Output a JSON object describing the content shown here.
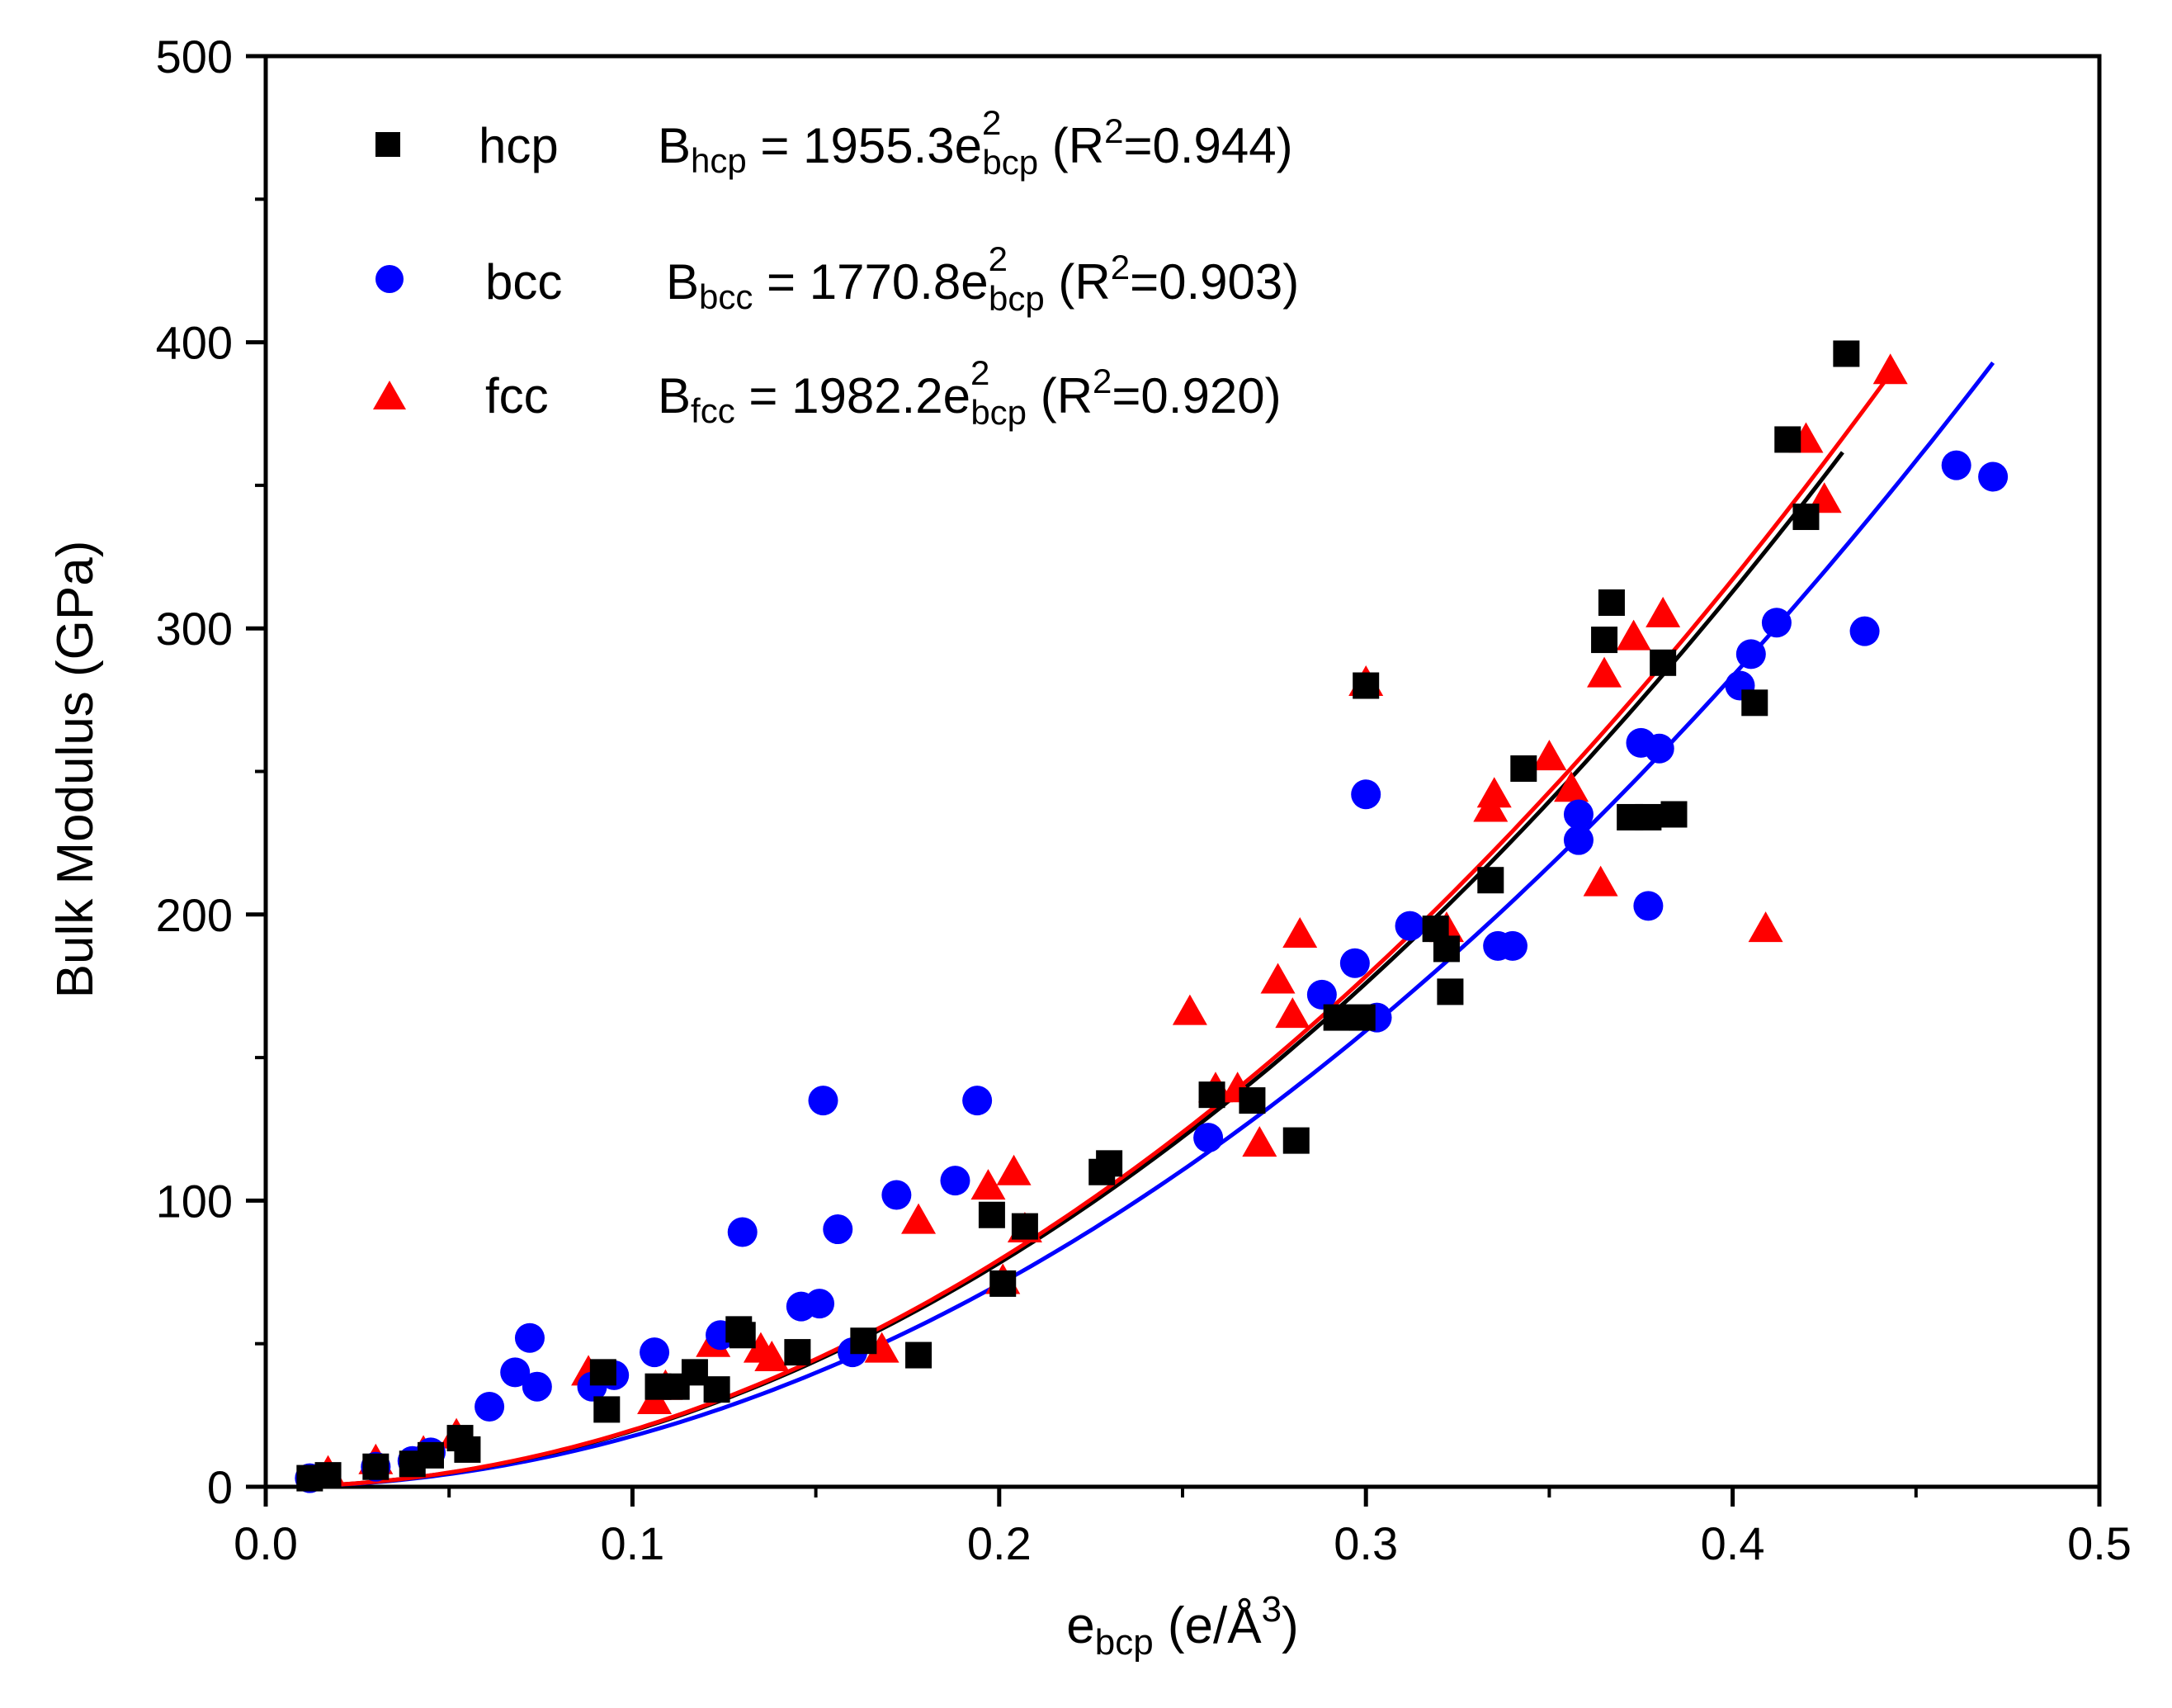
{
  "chart_data": {
    "type": "scatter",
    "xlabel": {
      "main": "e",
      "sub": "bcp",
      "unit_open": " (e/Å",
      "unit_sup": "3",
      "unit_close": ")"
    },
    "ylabel": "Bulk Modulus (GPa)",
    "xlim": [
      0.0,
      0.5
    ],
    "ylim": [
      0,
      500
    ],
    "x_ticks": [
      "0.0",
      "0.1",
      "0.2",
      "0.3",
      "0.4",
      "0.5"
    ],
    "y_ticks": [
      "0",
      "100",
      "200",
      "300",
      "400",
      "500"
    ],
    "grid": false,
    "legend_position": "top-left",
    "series": [
      {
        "name": "hcp",
        "marker": "square",
        "color": "#000000",
        "equation": {
          "b": "B",
          "b_sub": "hcp",
          "mid": " = 1955.3e",
          "e_sup": "2",
          "e_sub": "bcp",
          "r_open": " (R",
          "r_sup": "2",
          "r_close": "=0.944)"
        },
        "fit": {
          "coef": 1955.3,
          "x_end": 0.43,
          "color": "#000000"
        },
        "points": [
          [
            0.012,
            3
          ],
          [
            0.017,
            4
          ],
          [
            0.03,
            7
          ],
          [
            0.04,
            8
          ],
          [
            0.045,
            11
          ],
          [
            0.053,
            17
          ],
          [
            0.055,
            13
          ],
          [
            0.092,
            40
          ],
          [
            0.093,
            27
          ],
          [
            0.107,
            35
          ],
          [
            0.112,
            35
          ],
          [
            0.117,
            40
          ],
          [
            0.123,
            34
          ],
          [
            0.129,
            55
          ],
          [
            0.13,
            53
          ],
          [
            0.145,
            47
          ],
          [
            0.163,
            51
          ],
          [
            0.178,
            46
          ],
          [
            0.198,
            95
          ],
          [
            0.201,
            71
          ],
          [
            0.207,
            91
          ],
          [
            0.228,
            110
          ],
          [
            0.23,
            113
          ],
          [
            0.258,
            137
          ],
          [
            0.269,
            135
          ],
          [
            0.281,
            121
          ],
          [
            0.292,
            164
          ],
          [
            0.299,
            164
          ],
          [
            0.3,
            280
          ],
          [
            0.319,
            195
          ],
          [
            0.322,
            188
          ],
          [
            0.323,
            173
          ],
          [
            0.334,
            212
          ],
          [
            0.343,
            251
          ],
          [
            0.365,
            296
          ],
          [
            0.367,
            309
          ],
          [
            0.372,
            234
          ],
          [
            0.377,
            234
          ],
          [
            0.381,
            288
          ],
          [
            0.384,
            235
          ],
          [
            0.406,
            274
          ],
          [
            0.415,
            366
          ],
          [
            0.42,
            339
          ],
          [
            0.431,
            396
          ]
        ]
      },
      {
        "name": "bcc",
        "marker": "circle",
        "color": "#0000ff",
        "equation": {
          "b": "B",
          "b_sub": "bcc",
          "mid": " = 1770.8e",
          "e_sup": "2",
          "e_sub": "bcp",
          "r_open": " (R",
          "r_sup": "2",
          "r_close": "=0.903)"
        },
        "fit": {
          "coef": 1770.8,
          "x_end": 0.471,
          "color": "#0000ff"
        },
        "points": [
          [
            0.012,
            3
          ],
          [
            0.03,
            7
          ],
          [
            0.04,
            9
          ],
          [
            0.045,
            12
          ],
          [
            0.061,
            28
          ],
          [
            0.068,
            40
          ],
          [
            0.072,
            52
          ],
          [
            0.074,
            35
          ],
          [
            0.089,
            35
          ],
          [
            0.095,
            39
          ],
          [
            0.106,
            47
          ],
          [
            0.124,
            53
          ],
          [
            0.13,
            89
          ],
          [
            0.146,
            63
          ],
          [
            0.151,
            64
          ],
          [
            0.152,
            135
          ],
          [
            0.156,
            90
          ],
          [
            0.16,
            47
          ],
          [
            0.172,
            102
          ],
          [
            0.188,
            107
          ],
          [
            0.194,
            135
          ],
          [
            0.257,
            122
          ],
          [
            0.288,
            172
          ],
          [
            0.297,
            183
          ],
          [
            0.3,
            242
          ],
          [
            0.303,
            164
          ],
          [
            0.312,
            196
          ],
          [
            0.336,
            189
          ],
          [
            0.34,
            189
          ],
          [
            0.358,
            226
          ],
          [
            0.358,
            235
          ],
          [
            0.375,
            260
          ],
          [
            0.377,
            203
          ],
          [
            0.38,
            258
          ],
          [
            0.402,
            280
          ],
          [
            0.405,
            291
          ],
          [
            0.412,
            302
          ],
          [
            0.436,
            299
          ],
          [
            0.461,
            357
          ],
          [
            0.471,
            353
          ]
        ]
      },
      {
        "name": "fcc",
        "marker": "triangle",
        "color": "#ff0000",
        "equation": {
          "b": "B",
          "b_sub": "fcc",
          "mid": " = 1982.2e",
          "e_sup": "2",
          "e_sub": "bcp",
          "r_open": " (R",
          "r_sup": "2",
          "r_close": "=0.920)"
        },
        "fit": {
          "coef": 1982.2,
          "x_end": 0.443,
          "color": "#ff0000"
        },
        "points": [
          [
            0.017,
            5
          ],
          [
            0.03,
            9
          ],
          [
            0.043,
            12
          ],
          [
            0.052,
            18
          ],
          [
            0.088,
            40
          ],
          [
            0.106,
            30
          ],
          [
            0.109,
            35
          ],
          [
            0.122,
            50
          ],
          [
            0.135,
            48
          ],
          [
            0.138,
            45
          ],
          [
            0.168,
            48
          ],
          [
            0.178,
            93
          ],
          [
            0.197,
            105
          ],
          [
            0.201,
            72
          ],
          [
            0.204,
            110
          ],
          [
            0.207,
            90
          ],
          [
            0.252,
            166
          ],
          [
            0.259,
            139
          ],
          [
            0.265,
            139
          ],
          [
            0.271,
            120
          ],
          [
            0.276,
            177
          ],
          [
            0.28,
            165
          ],
          [
            0.282,
            193
          ],
          [
            0.3,
            281
          ],
          [
            0.322,
            195
          ],
          [
            0.334,
            237
          ],
          [
            0.335,
            242
          ],
          [
            0.35,
            255
          ],
          [
            0.356,
            244
          ],
          [
            0.364,
            211
          ],
          [
            0.365,
            284
          ],
          [
            0.373,
            297
          ],
          [
            0.381,
            305
          ],
          [
            0.409,
            195
          ],
          [
            0.42,
            366
          ],
          [
            0.425,
            345
          ],
          [
            0.443,
            390
          ]
        ]
      }
    ]
  }
}
